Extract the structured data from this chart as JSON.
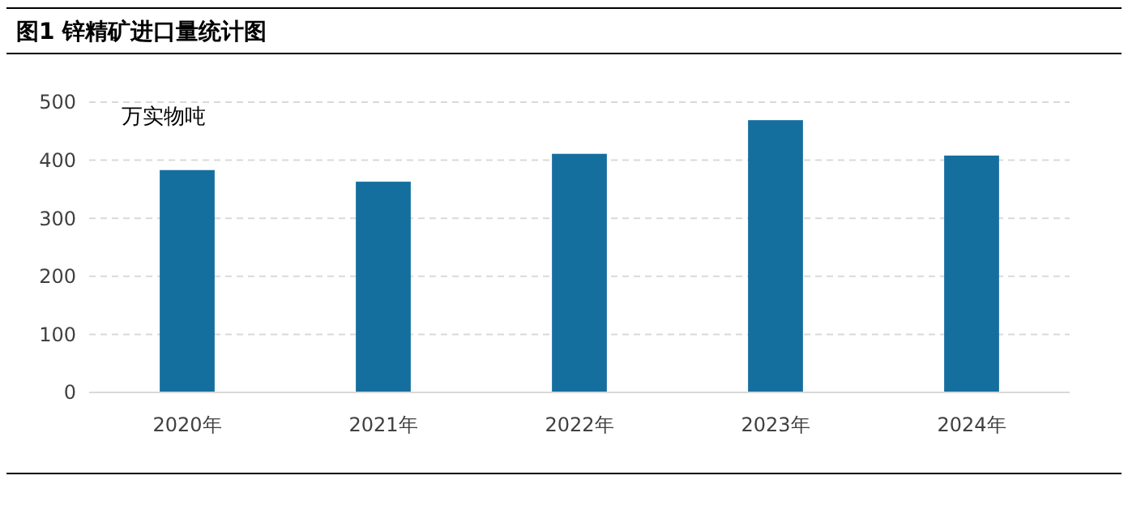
{
  "chart_data": {
    "type": "bar",
    "title": "图1 锌精矿进口量统计图",
    "ylabel": "万实物吨",
    "categories": [
      "2020年",
      "2021年",
      "2022年",
      "2023年",
      "2024年"
    ],
    "values": [
      383,
      363,
      411,
      469,
      408
    ],
    "color": "#156f9e",
    "ylim": [
      0,
      500
    ],
    "yticks": [
      0,
      100,
      200,
      300,
      400,
      500
    ],
    "grid": "y"
  }
}
